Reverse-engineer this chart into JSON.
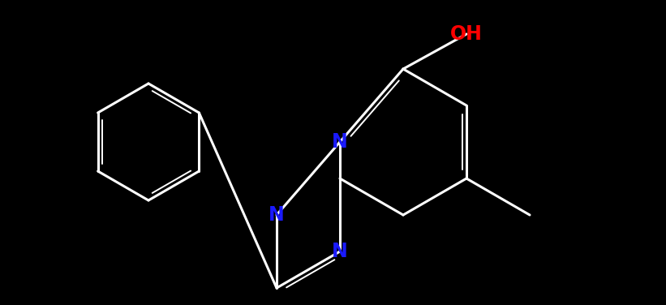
{
  "bg": "#000000",
  "bond_color": "#ffffff",
  "N_color": "#1a1aff",
  "OH_color": "#ff0000",
  "lw": 2.2,
  "lw_inner": 1.4,
  "dbo": 0.055,
  "fs_N": 17,
  "fs_OH": 17,
  "xlim": [
    0,
    8.21
  ],
  "ylim": [
    0,
    3.76
  ],
  "figw": 8.21,
  "figh": 3.76
}
